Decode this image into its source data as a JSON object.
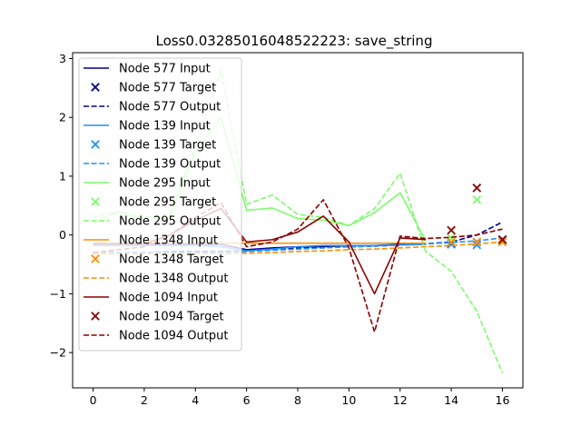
{
  "chart_data": {
    "type": "line",
    "title": "Loss0.03285016048522223: save_string",
    "xlabel": "",
    "ylabel": "",
    "xlim": [
      -0.8,
      16.8
    ],
    "ylim": [
      -2.6,
      3.1
    ],
    "xticks": [
      0,
      2,
      4,
      6,
      8,
      10,
      12,
      14,
      16
    ],
    "yticks": [
      -2,
      -1,
      0,
      1,
      2,
      3
    ],
    "ytick_labels": [
      "−2",
      "−1",
      "0",
      "1",
      "2",
      "3"
    ],
    "grid": false,
    "legend_position": "upper left",
    "colors": {
      "node577": "#00008b",
      "node139": "#1e90ff",
      "node295": "#7cfc6a",
      "node1348": "#ff8c00",
      "node1094": "#8b0000"
    },
    "series": [
      {
        "name": "Node 577 Input",
        "kind": "input",
        "color_key": "node577",
        "x": [
          0,
          1,
          2,
          3,
          4,
          5,
          6,
          7,
          8,
          9,
          10,
          11,
          12,
          13
        ],
        "y": [
          -0.15,
          -0.15,
          -0.15,
          -0.16,
          -0.16,
          -0.16,
          -0.25,
          -0.22,
          -0.2,
          -0.2,
          -0.18,
          -0.18,
          -0.16,
          -0.15
        ]
      },
      {
        "name": "Node 577 Target",
        "kind": "target",
        "color_key": "node577",
        "x": [
          14,
          15,
          16
        ],
        "y": [
          -0.15,
          -0.12,
          -0.08
        ]
      },
      {
        "name": "Node 577 Output",
        "kind": "output",
        "color_key": "node577",
        "x": [
          0,
          1,
          2,
          3,
          4,
          5,
          6,
          7,
          8,
          9,
          10,
          11,
          12,
          13,
          14,
          15,
          16
        ],
        "y": [
          -0.3,
          -0.3,
          -0.3,
          -0.28,
          -0.28,
          -0.28,
          -0.27,
          -0.25,
          -0.22,
          -0.21,
          -0.2,
          -0.19,
          -0.17,
          -0.15,
          -0.12,
          0.0,
          0.22
        ]
      },
      {
        "name": "Node 139 Input",
        "kind": "input",
        "color_key": "node139",
        "x": [
          0,
          1,
          2,
          3,
          4,
          5,
          6,
          7,
          8,
          9,
          10,
          11,
          12,
          13
        ],
        "y": [
          -0.18,
          -0.18,
          -0.18,
          -0.18,
          -0.18,
          -0.2,
          -0.27,
          -0.24,
          -0.2,
          -0.18,
          -0.18,
          -0.18,
          -0.17,
          -0.16
        ]
      },
      {
        "name": "Node 139 Target",
        "kind": "target",
        "color_key": "node139",
        "x": [
          14,
          15,
          16
        ],
        "y": [
          -0.16,
          -0.17,
          -0.08
        ]
      },
      {
        "name": "Node 139 Output",
        "kind": "output",
        "color_key": "node139",
        "x": [
          0,
          1,
          2,
          3,
          4,
          5,
          6,
          7,
          8,
          9,
          10,
          11,
          12,
          13,
          14,
          15,
          16
        ],
        "y": [
          -0.3,
          -0.3,
          -0.3,
          -0.3,
          -0.3,
          -0.3,
          -0.28,
          -0.26,
          -0.24,
          -0.22,
          -0.2,
          -0.19,
          -0.17,
          -0.15,
          -0.13,
          -0.1,
          -0.05
        ]
      },
      {
        "name": "Node 295 Input",
        "kind": "input",
        "color_key": "node295",
        "x": [
          0,
          1,
          2,
          3,
          4,
          5,
          6,
          7,
          8,
          9,
          10,
          11,
          12,
          13
        ],
        "y": [
          0.2,
          0.4,
          0.25,
          0.3,
          1.4,
          2.0,
          0.42,
          0.46,
          0.28,
          0.25,
          0.16,
          0.38,
          0.72,
          -0.1
        ]
      },
      {
        "name": "Node 295 Target",
        "kind": "target",
        "color_key": "node295",
        "x": [
          14,
          15,
          16
        ],
        "y": [
          -0.05,
          0.6,
          -0.1
        ]
      },
      {
        "name": "Node 295 Output",
        "kind": "output",
        "color_key": "node295",
        "x": [
          0,
          1,
          2,
          3,
          4,
          5,
          6,
          7,
          8,
          9,
          10,
          11,
          12,
          13,
          14,
          15,
          16
        ],
        "y": [
          0.3,
          0.4,
          0.3,
          0.35,
          1.5,
          2.8,
          0.52,
          0.68,
          0.35,
          0.3,
          0.16,
          0.45,
          1.05,
          -0.28,
          -0.62,
          -1.3,
          -2.35
        ]
      },
      {
        "name": "Node 1348 Input",
        "kind": "input",
        "color_key": "node1348",
        "x": [
          0,
          1,
          2,
          3,
          4,
          5,
          6,
          7,
          8,
          9,
          10,
          11,
          12,
          13
        ],
        "y": [
          -0.14,
          -0.14,
          -0.14,
          -0.14,
          -0.14,
          -0.14,
          -0.14,
          -0.14,
          -0.14,
          -0.14,
          -0.14,
          -0.14,
          -0.14,
          -0.14
        ]
      },
      {
        "name": "Node 1348 Target",
        "kind": "target",
        "color_key": "node1348",
        "x": [
          14,
          15,
          16
        ],
        "y": [
          -0.12,
          -0.12,
          -0.12
        ]
      },
      {
        "name": "Node 1348 Output",
        "kind": "output",
        "color_key": "node1348",
        "x": [
          0,
          1,
          2,
          3,
          4,
          5,
          6,
          7,
          8,
          9,
          10,
          11,
          12,
          13,
          14,
          15,
          16
        ],
        "y": [
          -0.32,
          -0.32,
          -0.32,
          -0.32,
          -0.32,
          -0.32,
          -0.31,
          -0.3,
          -0.28,
          -0.27,
          -0.25,
          -0.24,
          -0.22,
          -0.2,
          -0.18,
          -0.15,
          -0.12
        ]
      },
      {
        "name": "Node 1094 Input",
        "kind": "input",
        "color_key": "node1094",
        "x": [
          0,
          1,
          2,
          3,
          4,
          5,
          6,
          7,
          8,
          9,
          10,
          11,
          12,
          13
        ],
        "y": [
          -0.15,
          -0.15,
          -0.15,
          0.0,
          0.25,
          0.45,
          -0.12,
          -0.08,
          0.05,
          0.32,
          -0.12,
          -1.0,
          -0.05,
          -0.08
        ]
      },
      {
        "name": "Node 1094 Target",
        "kind": "target",
        "color_key": "node1094",
        "x": [
          14,
          15,
          16
        ],
        "y": [
          0.08,
          0.8,
          -0.08
        ]
      },
      {
        "name": "Node 1094 Output",
        "kind": "output",
        "color_key": "node1094",
        "x": [
          0,
          1,
          2,
          3,
          4,
          5,
          6,
          7,
          8,
          9,
          10,
          11,
          12,
          13,
          14,
          15,
          16
        ],
        "y": [
          -0.3,
          -0.25,
          -0.2,
          0.0,
          0.3,
          0.55,
          -0.2,
          -0.12,
          0.1,
          0.6,
          -0.22,
          -1.65,
          -0.02,
          -0.06,
          -0.04,
          0.0,
          0.1
        ]
      }
    ]
  }
}
